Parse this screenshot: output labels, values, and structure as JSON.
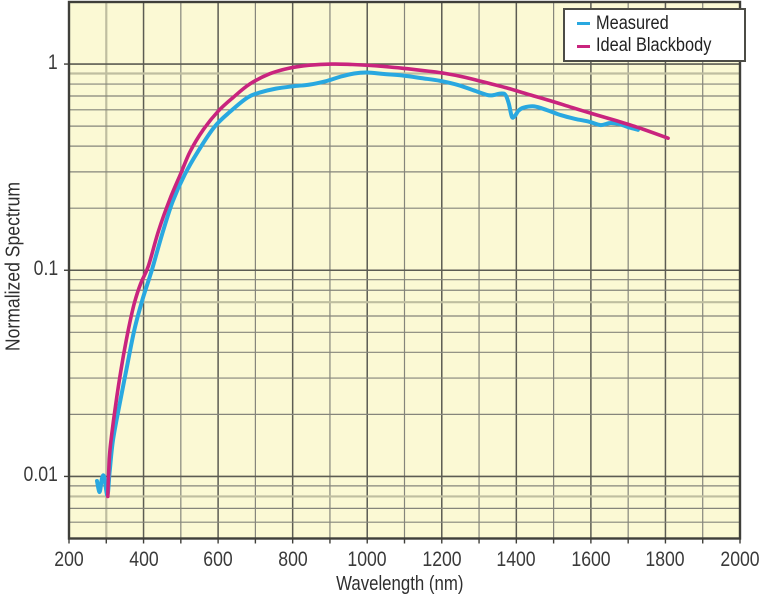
{
  "colors": {
    "plot_background": "#fbf9d4",
    "outer_background": "#ffffff",
    "grid_minor": "#85857b",
    "grid_major": "#5c5c53",
    "grid_khaki": "#bfbea0",
    "border": "#3f3f3a",
    "text": "#3a3a3a",
    "measured": "#29a8e0",
    "blackbody": "#c9247e"
  },
  "chart_data": {
    "type": "line",
    "title": "",
    "xlabel": "Wavelength (nm)",
    "ylabel": "Normalized Spectrum",
    "grid": "on",
    "x_axis": {
      "scale": "linear",
      "min": 200,
      "max": 2000,
      "tick_labels": [
        200,
        400,
        600,
        800,
        1000,
        1200,
        1400,
        1600,
        1800,
        2000
      ],
      "minor_step": 100
    },
    "y_axis": {
      "scale": "log",
      "min": 0.005,
      "max": 2,
      "tick_labels": [
        "1",
        "0.1",
        "0.01"
      ],
      "tick_values": [
        1,
        0.1,
        0.01
      ],
      "minor_values": [
        0.006,
        0.007,
        0.008,
        0.009,
        0.02,
        0.03,
        0.04,
        0.05,
        0.06,
        0.07,
        0.08,
        0.09,
        0.2,
        0.3,
        0.4,
        0.5,
        0.6,
        0.7,
        0.8,
        0.9
      ]
    },
    "khaki_x_lines": [
      300,
      1220
    ],
    "khaki_y_lines": [
      0.9,
      0.07,
      0.008
    ],
    "legend": {
      "position": "top-right",
      "entries": [
        {
          "label": "Measured",
          "color": "#29a8e0"
        },
        {
          "label": "Ideal Blackbody",
          "color": "#c9247e"
        }
      ]
    },
    "series": [
      {
        "name": "Measured",
        "color": "#29a8e0",
        "points": [
          [
            275,
            0.0095
          ],
          [
            282,
            0.0084
          ],
          [
            288,
            0.0097
          ],
          [
            294,
            0.01
          ],
          [
            303,
            0.0081
          ],
          [
            309,
            0.0105
          ],
          [
            318,
            0.015
          ],
          [
            336,
            0.0225
          ],
          [
            356,
            0.0345
          ],
          [
            376,
            0.052
          ],
          [
            398,
            0.073
          ],
          [
            422,
            0.1
          ],
          [
            450,
            0.15
          ],
          [
            478,
            0.215
          ],
          [
            510,
            0.29
          ],
          [
            546,
            0.377
          ],
          [
            590,
            0.495
          ],
          [
            632,
            0.587
          ],
          [
            680,
            0.69
          ],
          [
            715,
            0.73
          ],
          [
            755,
            0.76
          ],
          [
            800,
            0.78
          ],
          [
            845,
            0.795
          ],
          [
            888,
            0.825
          ],
          [
            930,
            0.87
          ],
          [
            965,
            0.9
          ],
          [
            1000,
            0.91
          ],
          [
            1045,
            0.895
          ],
          [
            1095,
            0.88
          ],
          [
            1145,
            0.855
          ],
          [
            1195,
            0.83
          ],
          [
            1245,
            0.79
          ],
          [
            1295,
            0.735
          ],
          [
            1330,
            0.705
          ],
          [
            1358,
            0.72
          ],
          [
            1371,
            0.708
          ],
          [
            1380,
            0.64
          ],
          [
            1388,
            0.555
          ],
          [
            1396,
            0.56
          ],
          [
            1406,
            0.595
          ],
          [
            1420,
            0.615
          ],
          [
            1448,
            0.623
          ],
          [
            1482,
            0.598
          ],
          [
            1520,
            0.565
          ],
          [
            1558,
            0.542
          ],
          [
            1596,
            0.525
          ],
          [
            1626,
            0.506
          ],
          [
            1652,
            0.518
          ],
          [
            1676,
            0.512
          ],
          [
            1702,
            0.493
          ],
          [
            1726,
            0.48
          ]
        ]
      },
      {
        "name": "Ideal Blackbody",
        "color": "#c9247e",
        "points": [
          [
            304,
            0.008
          ],
          [
            306,
            0.01
          ],
          [
            310,
            0.0135
          ],
          [
            320,
            0.019
          ],
          [
            332,
            0.027
          ],
          [
            346,
            0.0385
          ],
          [
            362,
            0.0545
          ],
          [
            376,
            0.07
          ],
          [
            392,
            0.086
          ],
          [
            413,
            0.105
          ],
          [
            440,
            0.155
          ],
          [
            470,
            0.22
          ],
          [
            500,
            0.295
          ],
          [
            525,
            0.377
          ],
          [
            560,
            0.48
          ],
          [
            600,
            0.59
          ],
          [
            640,
            0.688
          ],
          [
            685,
            0.8
          ],
          [
            739,
            0.898
          ],
          [
            790,
            0.955
          ],
          [
            845,
            0.987
          ],
          [
            905,
            1.0
          ],
          [
            960,
            0.995
          ],
          [
            1010,
            0.984
          ],
          [
            1060,
            0.968
          ],
          [
            1110,
            0.948
          ],
          [
            1160,
            0.925
          ],
          [
            1210,
            0.9
          ],
          [
            1260,
            0.865
          ],
          [
            1310,
            0.82
          ],
          [
            1370,
            0.77
          ],
          [
            1430,
            0.715
          ],
          [
            1490,
            0.665
          ],
          [
            1550,
            0.615
          ],
          [
            1610,
            0.57
          ],
          [
            1670,
            0.53
          ],
          [
            1730,
            0.49
          ],
          [
            1807,
            0.437
          ]
        ]
      }
    ]
  }
}
